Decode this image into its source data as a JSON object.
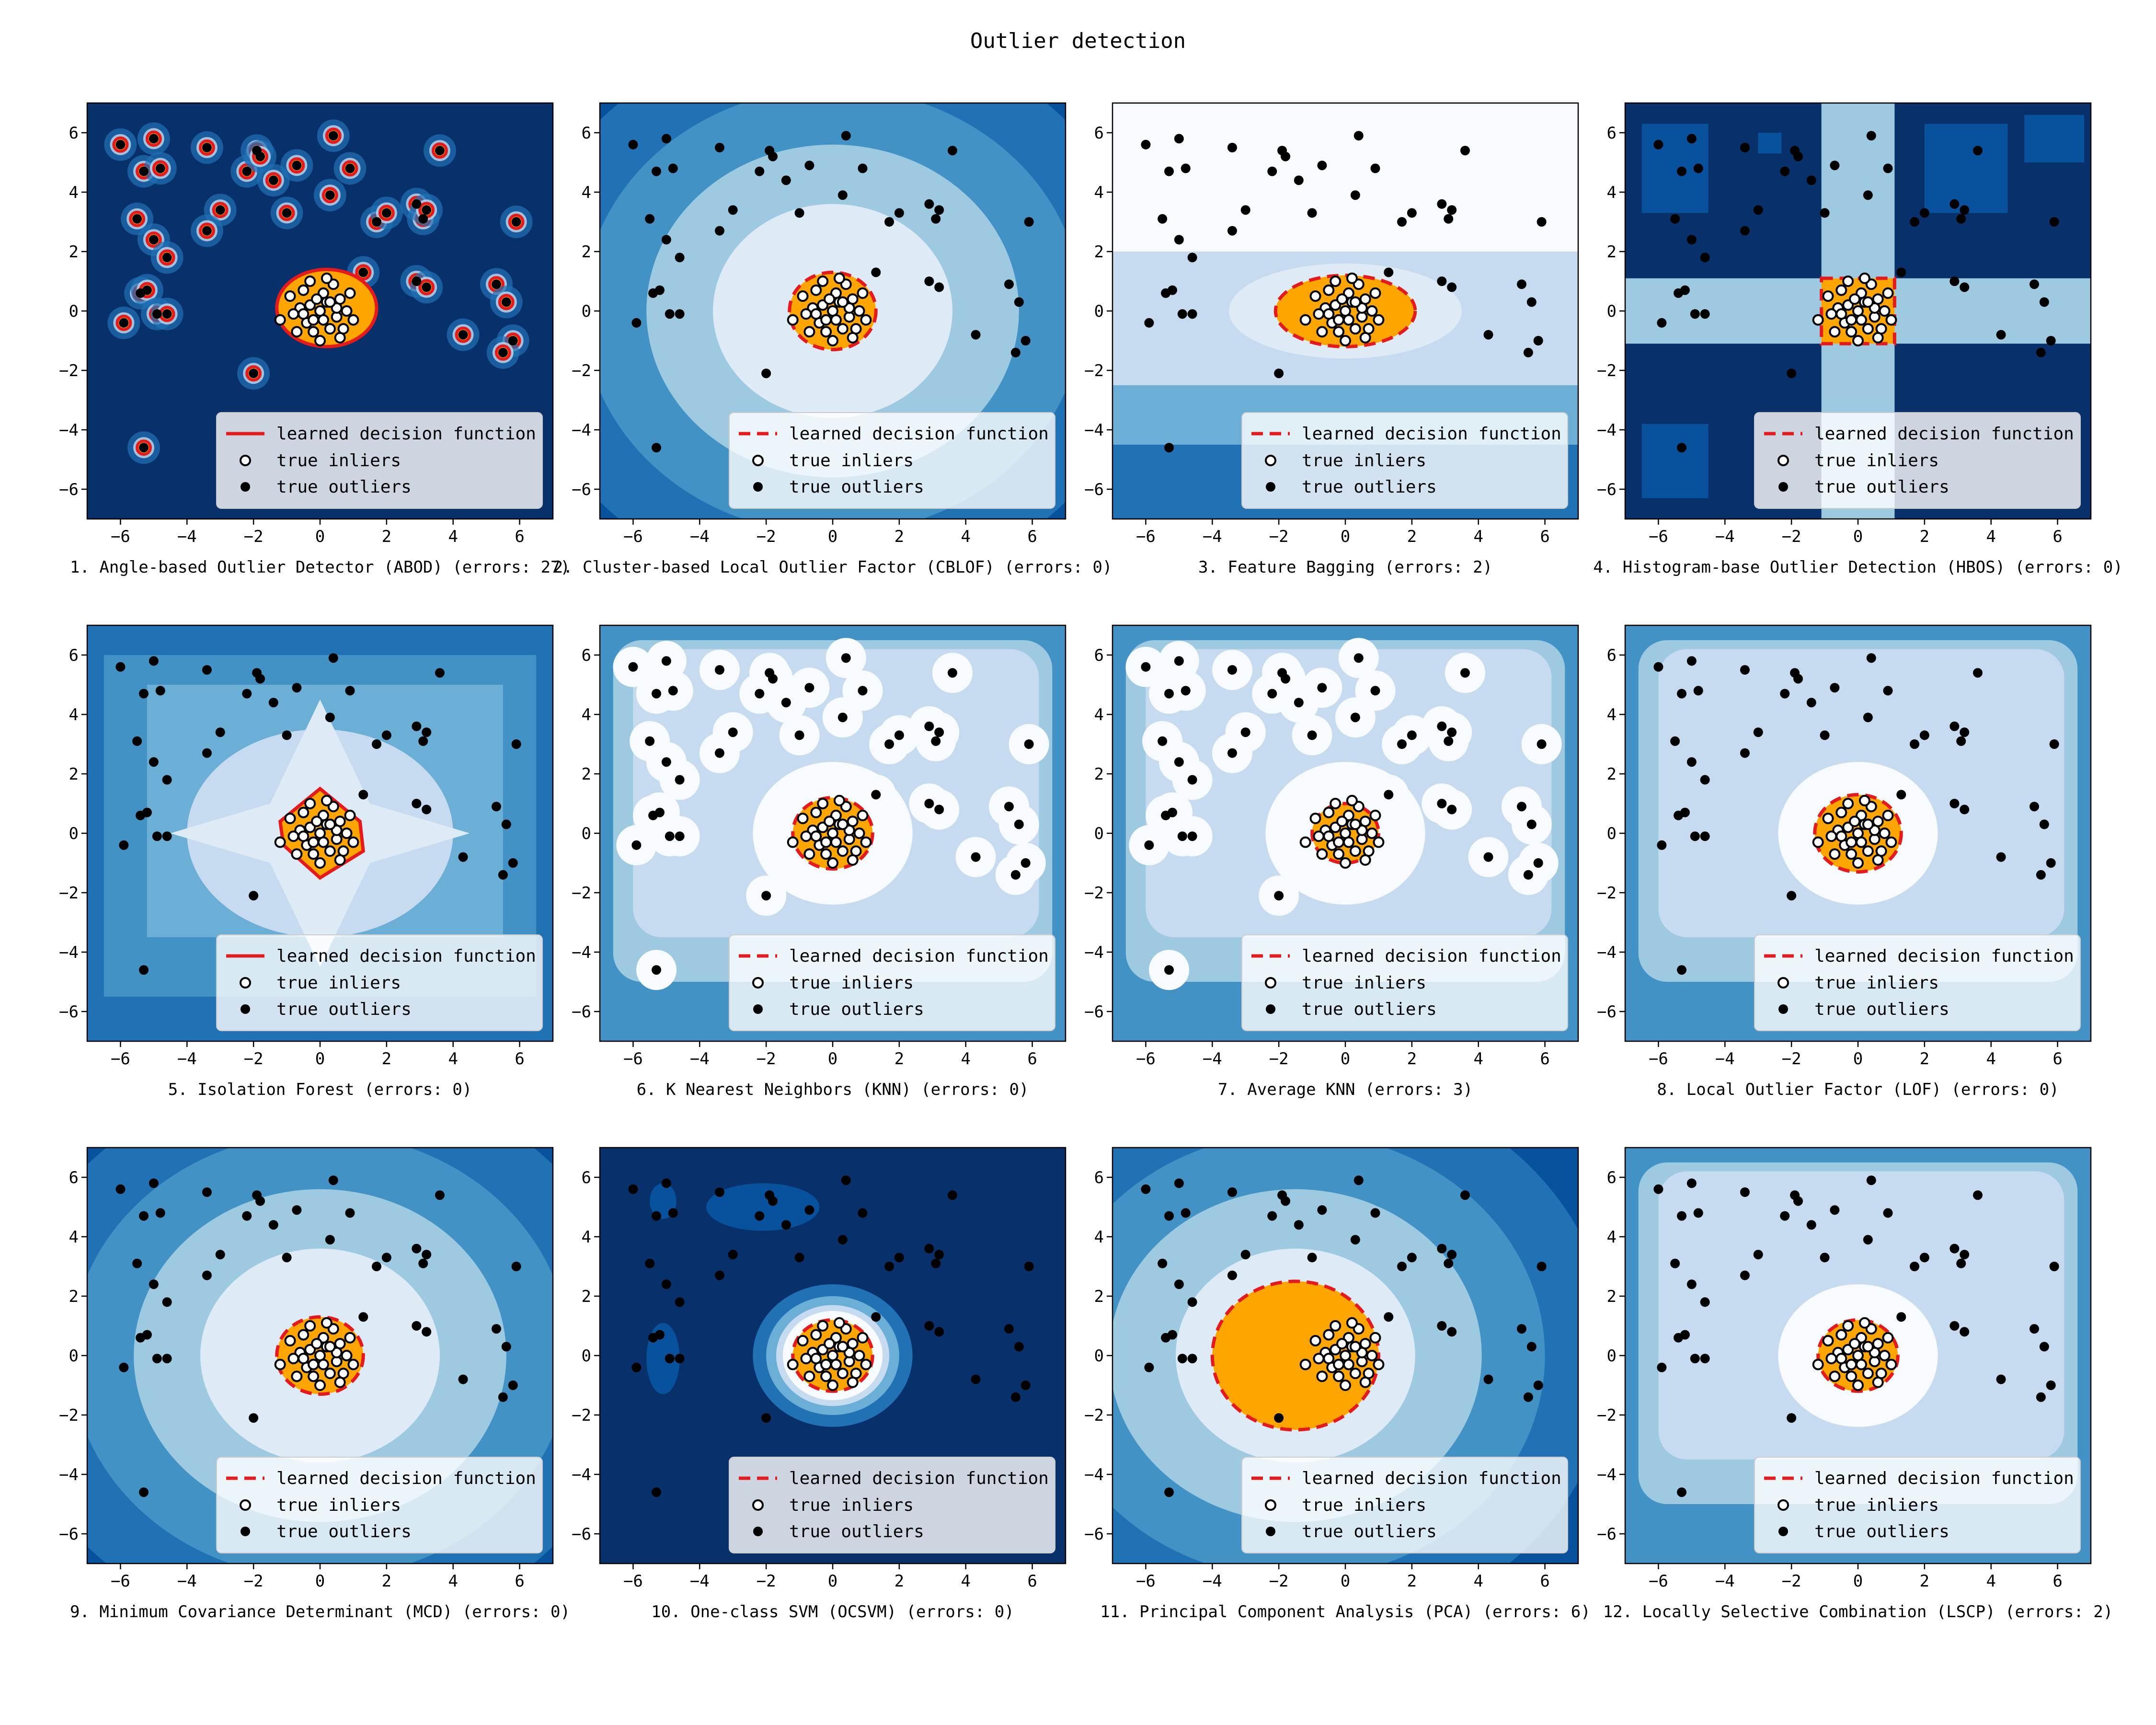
{
  "figure": {
    "title": "Outlier detection",
    "xlim": [
      -7,
      7
    ],
    "ylim": [
      -7,
      7
    ],
    "xticks": [
      -6,
      -4,
      -2,
      0,
      2,
      4,
      6
    ],
    "yticks": [
      -6,
      -4,
      -2,
      0,
      2,
      4,
      6
    ],
    "legend": {
      "placement": "lower-right",
      "decision_label": "learned decision function",
      "inliers_label": "true inliers",
      "outliers_label": "true outliers"
    },
    "colors": {
      "decision_line": "#e41a1c",
      "inlier_fill": "#ffa500",
      "contour_palette": [
        "#08306b",
        "#08519c",
        "#2171b5",
        "#4292c6",
        "#6baed6",
        "#9ecae1",
        "#c6dbef",
        "#deebf7",
        "#f7fbff"
      ]
    }
  },
  "chart_data": [
    {
      "type": "contour",
      "index": 1,
      "caption": "1. Angle-based Outlier Detector (ABOD) (errors: 27)",
      "line_style": "solid",
      "decision_radius": 1.3,
      "shape": "abod"
    },
    {
      "type": "contour",
      "index": 2,
      "caption": "2. Cluster-based Local Outlier Factor (CBLOF) (errors: 0)",
      "line_style": "dashed",
      "decision_radius": 1.3,
      "shape": "radial"
    },
    {
      "type": "contour",
      "index": 3,
      "caption": "3. Feature Bagging (errors: 2)",
      "line_style": "dashed",
      "decision_radius": 1.3,
      "shape": "bagging"
    },
    {
      "type": "contour",
      "index": 4,
      "caption": "4. Histogram-base Outlier Detection (HBOS) (errors: 0)",
      "line_style": "dashed",
      "decision_radius": 1.1,
      "shape": "hbos"
    },
    {
      "type": "contour",
      "index": 5,
      "caption": "5. Isolation Forest (errors: 0)",
      "line_style": "solid",
      "decision_radius": 1.5,
      "shape": "iforest"
    },
    {
      "type": "contour",
      "index": 6,
      "caption": "6. K Nearest Neighbors (KNN) (errors: 0)",
      "line_style": "dashed",
      "decision_radius": 1.2,
      "shape": "knn"
    },
    {
      "type": "contour",
      "index": 7,
      "caption": "7. Average KNN (errors: 3)",
      "line_style": "dashed",
      "decision_radius": 1.0,
      "shape": "knn"
    },
    {
      "type": "contour",
      "index": 8,
      "caption": "8. Local Outlier Factor (LOF) (errors: 0)",
      "line_style": "dashed",
      "decision_radius": 1.3,
      "shape": "lof"
    },
    {
      "type": "contour",
      "index": 9,
      "caption": "9. Minimum Covariance Determinant (MCD) (errors: 0)",
      "line_style": "dashed",
      "decision_radius": 1.3,
      "shape": "radial"
    },
    {
      "type": "contour",
      "index": 10,
      "caption": "10. One-class SVM (OCSVM) (errors: 0)",
      "line_style": "dashed",
      "decision_radius": 1.2,
      "shape": "ocsvm"
    },
    {
      "type": "contour",
      "index": 11,
      "caption": "11. Principal Component Analysis (PCA) (errors: 6)",
      "line_style": "dashed",
      "decision_radius": 2.5,
      "decision_center": [
        -1.5,
        0
      ],
      "shape": "radial"
    },
    {
      "type": "contour",
      "index": 12,
      "caption": "12. Locally Selective Combination (LSCP) (errors: 2)",
      "line_style": "dashed",
      "decision_radius": 1.2,
      "shape": "lscp"
    }
  ],
  "outliers": [
    [
      -6.0,
      5.6
    ],
    [
      -5.3,
      4.7
    ],
    [
      -5.0,
      5.8
    ],
    [
      -4.8,
      4.8
    ],
    [
      -5.5,
      3.1
    ],
    [
      -5.0,
      2.4
    ],
    [
      -4.6,
      1.8
    ],
    [
      -5.4,
      0.6
    ],
    [
      -5.2,
      0.7
    ],
    [
      -4.9,
      -0.1
    ],
    [
      -4.6,
      -0.1
    ],
    [
      -5.9,
      -0.4
    ],
    [
      -3.4,
      5.5
    ],
    [
      -2.2,
      4.7
    ],
    [
      -1.9,
      5.4
    ],
    [
      -1.8,
      5.2
    ],
    [
      -1.4,
      4.4
    ],
    [
      -1.0,
      3.3
    ],
    [
      -0.7,
      4.9
    ],
    [
      0.3,
      3.9
    ],
    [
      0.4,
      5.9
    ],
    [
      0.9,
      4.8
    ],
    [
      -2.0,
      -2.1
    ],
    [
      -3.0,
      3.4
    ],
    [
      -3.4,
      2.7
    ],
    [
      1.3,
      1.3
    ],
    [
      1.7,
      3.0
    ],
    [
      2.0,
      3.3
    ],
    [
      2.9,
      3.6
    ],
    [
      3.1,
      3.1
    ],
    [
      3.2,
      3.4
    ],
    [
      3.6,
      5.4
    ],
    [
      2.9,
      1.0
    ],
    [
      3.2,
      0.8
    ],
    [
      4.3,
      -0.8
    ],
    [
      5.3,
      0.9
    ],
    [
      5.6,
      0.3
    ],
    [
      5.9,
      3.0
    ],
    [
      5.8,
      -1.0
    ],
    [
      5.5,
      -1.4
    ],
    [
      -5.3,
      -4.6
    ]
  ],
  "inliers": [
    [
      0.0,
      0.0
    ],
    [
      0.2,
      0.3
    ],
    [
      -0.3,
      0.2
    ],
    [
      0.5,
      -0.2
    ],
    [
      -0.4,
      -0.4
    ],
    [
      0.1,
      0.6
    ],
    [
      0.6,
      0.4
    ],
    [
      -0.6,
      0.1
    ],
    [
      0.3,
      -0.6
    ],
    [
      -0.2,
      -0.7
    ],
    [
      0.8,
      0.0
    ],
    [
      -0.8,
      -0.1
    ],
    [
      0.4,
      0.9
    ],
    [
      -0.5,
      0.7
    ],
    [
      0.7,
      -0.6
    ],
    [
      -0.9,
      0.5
    ],
    [
      0.1,
      -0.3
    ],
    [
      -0.1,
      0.4
    ],
    [
      0.9,
      0.6
    ],
    [
      -0.7,
      -0.7
    ],
    [
      0.2,
      1.1
    ],
    [
      0.0,
      -1.0
    ],
    [
      -1.2,
      -0.3
    ],
    [
      1.0,
      -0.3
    ],
    [
      -0.3,
      1.0
    ],
    [
      0.5,
      0.1
    ],
    [
      -0.5,
      -0.1
    ],
    [
      0.3,
      0.3
    ],
    [
      -0.2,
      -0.3
    ],
    [
      0.6,
      -0.9
    ]
  ]
}
